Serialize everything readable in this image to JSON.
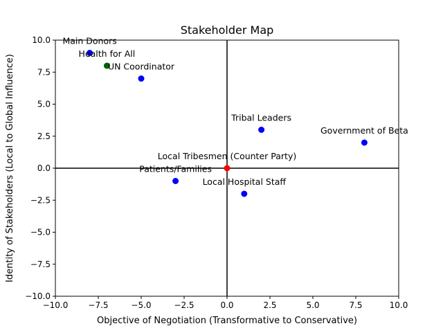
{
  "chart_data": {
    "type": "scatter",
    "title": "Stakeholder Map",
    "xlabel": "Objective of Negotiation (Transformative to Conservative)",
    "ylabel": "Identity of Stakeholders (Local to Global Influence)",
    "xlim": [
      -10,
      10
    ],
    "ylim": [
      -10,
      10
    ],
    "x_ticks": [
      "−10.0",
      "−7.5",
      "−5.0",
      "−2.5",
      "0.0",
      "2.5",
      "5.0",
      "7.5",
      "10.0"
    ],
    "y_ticks": [
      "−10.0",
      "−7.5",
      "−5.0",
      "−2.5",
      "0.0",
      "2.5",
      "5.0",
      "7.5",
      "10.0"
    ],
    "x_tick_values": [
      -10,
      -7.5,
      -5,
      -2.5,
      0,
      2.5,
      5,
      7.5,
      10
    ],
    "y_tick_values": [
      -10,
      -7.5,
      -5,
      -2.5,
      0,
      2.5,
      5,
      7.5,
      10
    ],
    "grid": false,
    "zero_lines": true,
    "points": [
      {
        "label": "Main Donors",
        "x": -8,
        "y": 9,
        "color": "#0000ff"
      },
      {
        "label": "Health for All",
        "x": -7,
        "y": 8,
        "color": "#006400"
      },
      {
        "label": "UN Coordinator",
        "x": -5,
        "y": 7,
        "color": "#0000ff"
      },
      {
        "label": "Tribal Leaders",
        "x": 2,
        "y": 3,
        "color": "#0000ff"
      },
      {
        "label": "Government of Beta",
        "x": 8,
        "y": 2,
        "color": "#0000ff"
      },
      {
        "label": "Local Tribesmen (Counter Party)",
        "x": 0,
        "y": 0,
        "color": "#ff0000"
      },
      {
        "label": "Patients/Families",
        "x": -3,
        "y": -1,
        "color": "#0000ff"
      },
      {
        "label": "Local Hospital Staff",
        "x": 1,
        "y": -2,
        "color": "#0000ff"
      }
    ]
  }
}
